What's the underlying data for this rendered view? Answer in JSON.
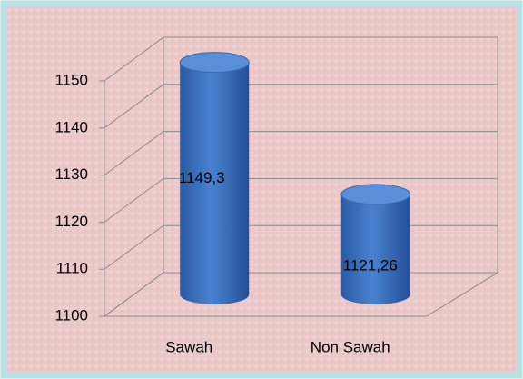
{
  "chart_data": {
    "type": "bar3d",
    "categories": [
      "Sawah",
      "Non Sawah"
    ],
    "values": [
      1149.3,
      1121.26
    ],
    "value_labels": [
      "1149,3",
      "1121,26"
    ],
    "color": "#3a6fbf",
    "ylim": [
      1100,
      1150
    ],
    "yticks": [
      1100,
      1110,
      1120,
      1130,
      1140,
      1150
    ],
    "grid": true
  }
}
